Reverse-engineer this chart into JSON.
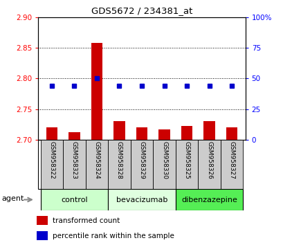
{
  "title": "GDS5672 / 234381_at",
  "samples": [
    "GSM958322",
    "GSM958323",
    "GSM958324",
    "GSM958328",
    "GSM958329",
    "GSM958330",
    "GSM958325",
    "GSM958326",
    "GSM958327"
  ],
  "red_values": [
    2.72,
    2.712,
    2.858,
    2.73,
    2.72,
    2.717,
    2.722,
    2.73,
    2.72
  ],
  "blue_values": [
    44,
    44,
    50,
    44,
    44,
    44,
    44,
    44,
    44
  ],
  "groups": [
    {
      "label": "control",
      "indices": [
        0,
        1,
        2
      ],
      "color": "#ccffcc"
    },
    {
      "label": "bevacizumab",
      "indices": [
        3,
        4,
        5
      ],
      "color": "#dfffdf"
    },
    {
      "label": "dibenzazepine",
      "indices": [
        6,
        7,
        8
      ],
      "color": "#55ee55"
    }
  ],
  "ylim_left": [
    2.7,
    2.9
  ],
  "ylim_right": [
    0,
    100
  ],
  "yticks_left": [
    2.7,
    2.75,
    2.8,
    2.85,
    2.9
  ],
  "yticks_right": [
    0,
    25,
    50,
    75,
    100
  ],
  "bar_color": "#cc0000",
  "dot_color": "#0000cc",
  "bar_width": 0.5,
  "bar_base": 2.7,
  "agent_label": "agent",
  "sample_box_color": "#cccccc",
  "grid_color": "#000000",
  "figsize": [
    4.1,
    3.54
  ],
  "dpi": 100
}
